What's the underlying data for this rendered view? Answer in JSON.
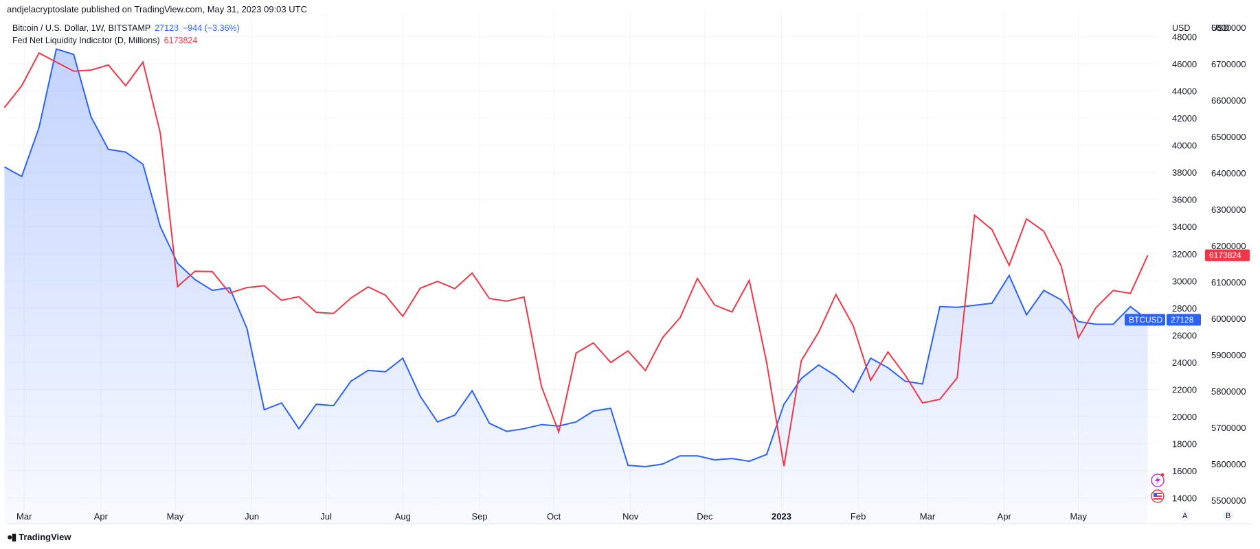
{
  "header": {
    "published": "andjelacryptoslate published on TradingView.com, May 31, 2023 09:03 UTC"
  },
  "legend": {
    "btc": {
      "title": "Bitcoin / U.S. Dollar, 1W, BITSTAMP",
      "value": "27128",
      "change": "−944 (−3.36%)"
    },
    "fed": {
      "title": "Fed Net Liquidity Indicator (D, Millions)",
      "value": "6173824"
    }
  },
  "footer": {
    "brand": "TradingView",
    "scale_a": "A",
    "scale_b": "B"
  },
  "colors": {
    "btc": "#2962ff",
    "fed": "#f23645",
    "grid": "#f0f3fa",
    "axis_text": "#131722"
  },
  "icons": [
    "tv-logo-icon",
    "lightning-alert-icon",
    "us-flag-icon"
  ],
  "chart_data": {
    "type": "line",
    "x": [
      "2022-02-21",
      "2022-02-28",
      "2022-03-07",
      "2022-03-14",
      "2022-03-21",
      "2022-03-28",
      "2022-04-04",
      "2022-04-11",
      "2022-04-18",
      "2022-04-25",
      "2022-05-02",
      "2022-05-09",
      "2022-05-16",
      "2022-05-23",
      "2022-05-30",
      "2022-06-06",
      "2022-06-13",
      "2022-06-20",
      "2022-06-27",
      "2022-07-04",
      "2022-07-11",
      "2022-07-18",
      "2022-07-25",
      "2022-08-01",
      "2022-08-08",
      "2022-08-15",
      "2022-08-22",
      "2022-08-29",
      "2022-09-05",
      "2022-09-12",
      "2022-09-19",
      "2022-09-26",
      "2022-10-03",
      "2022-10-10",
      "2022-10-17",
      "2022-10-24",
      "2022-10-31",
      "2022-11-07",
      "2022-11-14",
      "2022-11-21",
      "2022-11-28",
      "2022-12-05",
      "2022-12-12",
      "2022-12-19",
      "2022-12-26",
      "2023-01-02",
      "2023-01-09",
      "2023-01-16",
      "2023-01-23",
      "2023-01-30",
      "2023-02-06",
      "2023-02-13",
      "2023-02-20",
      "2023-02-27",
      "2023-03-06",
      "2023-03-13",
      "2023-03-20",
      "2023-03-27",
      "2023-04-03",
      "2023-04-10",
      "2023-04-17",
      "2023-04-24",
      "2023-05-01",
      "2023-05-08",
      "2023-05-15",
      "2023-05-22",
      "2023-05-29"
    ],
    "series": [
      {
        "name": "Bitcoin / U.S. Dollar, 1W, BITSTAMP",
        "axis": "BTC",
        "values": [
          38400,
          37700,
          41300,
          47100,
          46700,
          42100,
          39700,
          39500,
          38600,
          34000,
          31300,
          30100,
          29300,
          29500,
          26500,
          20500,
          21000,
          19100,
          20900,
          20800,
          22600,
          23400,
          23300,
          24300,
          21500,
          19600,
          20100,
          21900,
          19500,
          18900,
          19100,
          19400,
          19300,
          19600,
          20400,
          20600,
          16400,
          16300,
          16500,
          17100,
          17100,
          16800,
          16900,
          16700,
          17200,
          20900,
          22800,
          23800,
          23000,
          21800,
          24300,
          23600,
          22600,
          22400,
          28100,
          28050,
          28200,
          28350,
          30400,
          27500,
          29300,
          28600,
          27000,
          26800,
          26800,
          28100,
          27128
        ]
      },
      {
        "name": "Fed Net Liquidity Indicator (D, Millions)",
        "axis": "FED",
        "values": [
          6580000,
          6640000,
          6730000,
          6705000,
          6680000,
          6683000,
          6697000,
          6640000,
          6705000,
          6510000,
          6088000,
          6130000,
          6129000,
          6070000,
          6085000,
          6090000,
          6050000,
          6060000,
          6017000,
          6014000,
          6056000,
          6087000,
          6064000,
          6006000,
          6083000,
          6102000,
          6082000,
          6125000,
          6055000,
          6048000,
          6059000,
          5813000,
          5688000,
          5905000,
          5933000,
          5879000,
          5911000,
          5857000,
          5948000,
          6002000,
          6110000,
          6037000,
          6018000,
          6105000,
          5879000,
          5594000,
          5884000,
          5962000,
          6066000,
          5980000,
          5830000,
          5908000,
          5844000,
          5768000,
          5778000,
          5837000,
          6284000,
          6245000,
          6146000,
          6274000,
          6240000,
          6145000,
          5947000,
          6029000,
          6077000,
          6069000,
          6173824
        ]
      }
    ],
    "x_ticks": [
      {
        "date": "2022-03-01",
        "label": "Mar"
      },
      {
        "date": "2022-04-01",
        "label": "Apr"
      },
      {
        "date": "2022-05-01",
        "label": "May"
      },
      {
        "date": "2022-06-01",
        "label": "Jun"
      },
      {
        "date": "2022-07-01",
        "label": "Jul"
      },
      {
        "date": "2022-08-01",
        "label": "Aug"
      },
      {
        "date": "2022-09-01",
        "label": "Sep"
      },
      {
        "date": "2022-10-01",
        "label": "Oct"
      },
      {
        "date": "2022-11-01",
        "label": "Nov"
      },
      {
        "date": "2022-12-01",
        "label": "Dec"
      },
      {
        "date": "2023-01-01",
        "label": "2023"
      },
      {
        "date": "2023-02-01",
        "label": "Feb"
      },
      {
        "date": "2023-03-01",
        "label": "Mar"
      },
      {
        "date": "2023-04-01",
        "label": "Apr"
      },
      {
        "date": "2023-05-01",
        "label": "May"
      }
    ],
    "x_range": [
      "2022-02-22",
      "2023-06-02"
    ],
    "btc_axis": {
      "unit": "USD",
      "range": [
        12100,
        49700
      ],
      "ticks": [
        14000,
        16000,
        18000,
        20000,
        22000,
        24000,
        26000,
        28000,
        30000,
        32000,
        34000,
        36000,
        38000,
        40000,
        42000,
        44000,
        46000,
        48000
      ],
      "current_label": "BTCUSD",
      "current_value": 27128
    },
    "fed_axis": {
      "unit": "USD",
      "range": [
        5436000,
        6838000
      ],
      "ticks": [
        5500000,
        5600000,
        5700000,
        5800000,
        5900000,
        6000000,
        6100000,
        6200000,
        6300000,
        6400000,
        6500000,
        6600000,
        6700000,
        6800000
      ],
      "current_value": 6173824
    },
    "grid": true,
    "legend_position": "top-left"
  }
}
